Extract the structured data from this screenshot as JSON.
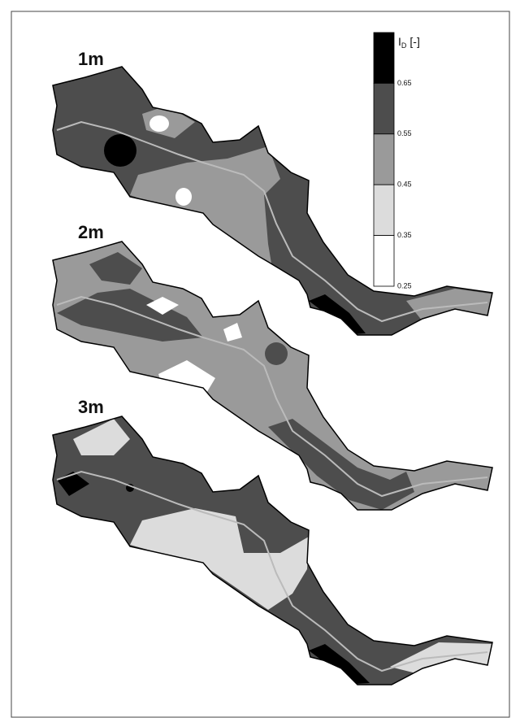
{
  "panels": [
    {
      "label": "1m"
    },
    {
      "label": "2m"
    },
    {
      "label": "3m"
    }
  ],
  "legend": {
    "title": "I",
    "title_subscript": "D",
    "title_unit": "[-]",
    "ticks": [
      "0.65",
      "0.55",
      "0.45",
      "0.35",
      "0.25"
    ],
    "colors": [
      "#000000",
      "#4d4d4d",
      "#9a9a9a",
      "#dcdcdc",
      "#ffffff"
    ]
  }
}
